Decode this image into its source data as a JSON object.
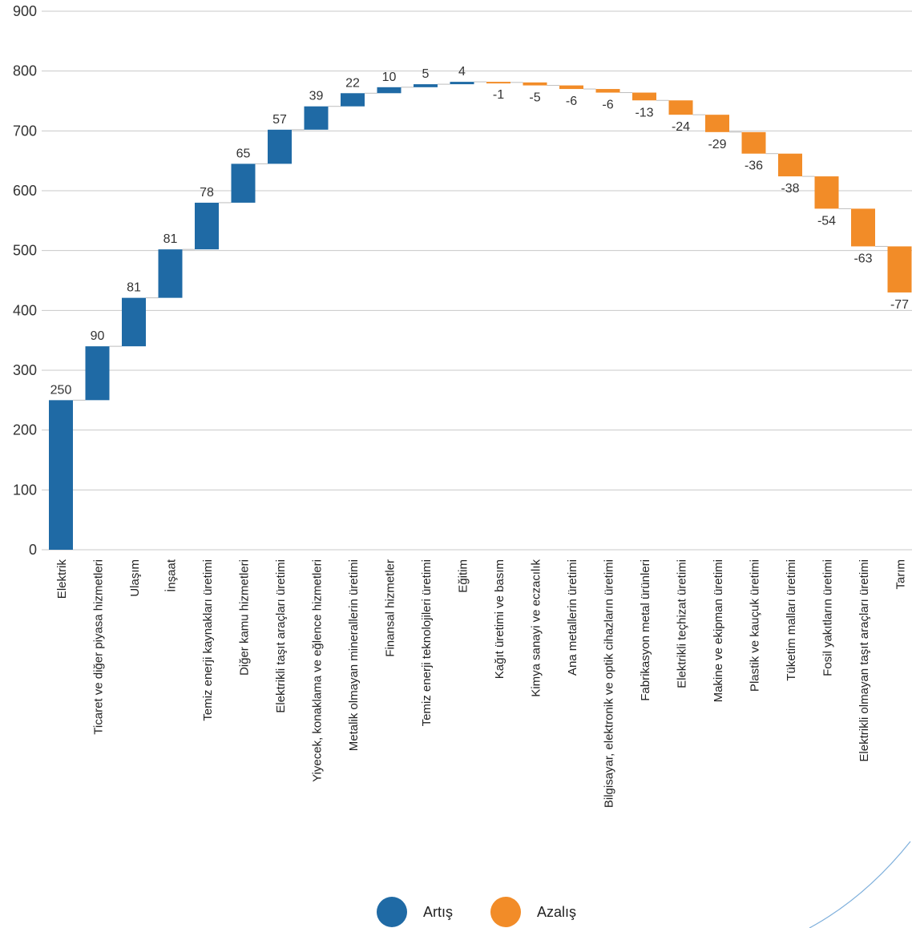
{
  "chart_data": {
    "type": "bar",
    "variant": "waterfall",
    "categories": [
      "Elektrik",
      "Ticaret ve diğer piyasa hizmetleri",
      "Ulaşım",
      "İnşaat",
      "Temiz enerji kaynakları üretimi",
      "Diğer kamu hizmetleri",
      "Elektrikli taşıt araçları üretimi",
      "Yiyecek, konaklama ve eğlence hizmetleri",
      "Metalik olmayan minerallerin üretimi",
      "Finansal hizmetler",
      "Temiz enerji teknolojileri üretimi",
      "Eğitim",
      "Kağıt üretimi ve basım",
      "Kimya sanayi ve eczacılık",
      "Ana metallerin üretimi",
      "Bilgisayar, elektronik ve optik cihazların üretimi",
      "Fabrikasyon metal ürünleri",
      "Elektrikli teçhizat üretimi",
      "Makine ve ekipman üretimi",
      "Plastik ve kauçuk üretimi",
      "Tüketim malları üretimi",
      "Fosil yakıtların üretimi",
      "Elektrikli olmayan taşıt araçları üretimi",
      "Tarım"
    ],
    "values": [
      250,
      90,
      81,
      81,
      78,
      65,
      57,
      39,
      22,
      10,
      5,
      4,
      -1,
      -5,
      -6,
      -6,
      -13,
      -24,
      -29,
      -36,
      -38,
      -54,
      -63,
      -77
    ],
    "data_labels": [
      "250",
      "90",
      "81",
      "81",
      "78",
      "65",
      "57",
      "39",
      "22",
      "10",
      "5",
      "4",
      "-1",
      "-5",
      "-6",
      "-6",
      "-13",
      "-24",
      "-29",
      "-36",
      "-38",
      "-54",
      "-63",
      "-77"
    ],
    "yticks": [
      "0",
      "100",
      "200",
      "300",
      "400",
      "500",
      "600",
      "700",
      "800",
      "900"
    ],
    "ylim": [
      0,
      900
    ],
    "grid": true,
    "legend": [
      {
        "name": "Artış",
        "color": "#1f6aa5"
      },
      {
        "name": "Azalış",
        "color": "#f28c28"
      }
    ],
    "legend_position": "bottom-center",
    "title": "",
    "xlabel": "",
    "ylabel": ""
  }
}
